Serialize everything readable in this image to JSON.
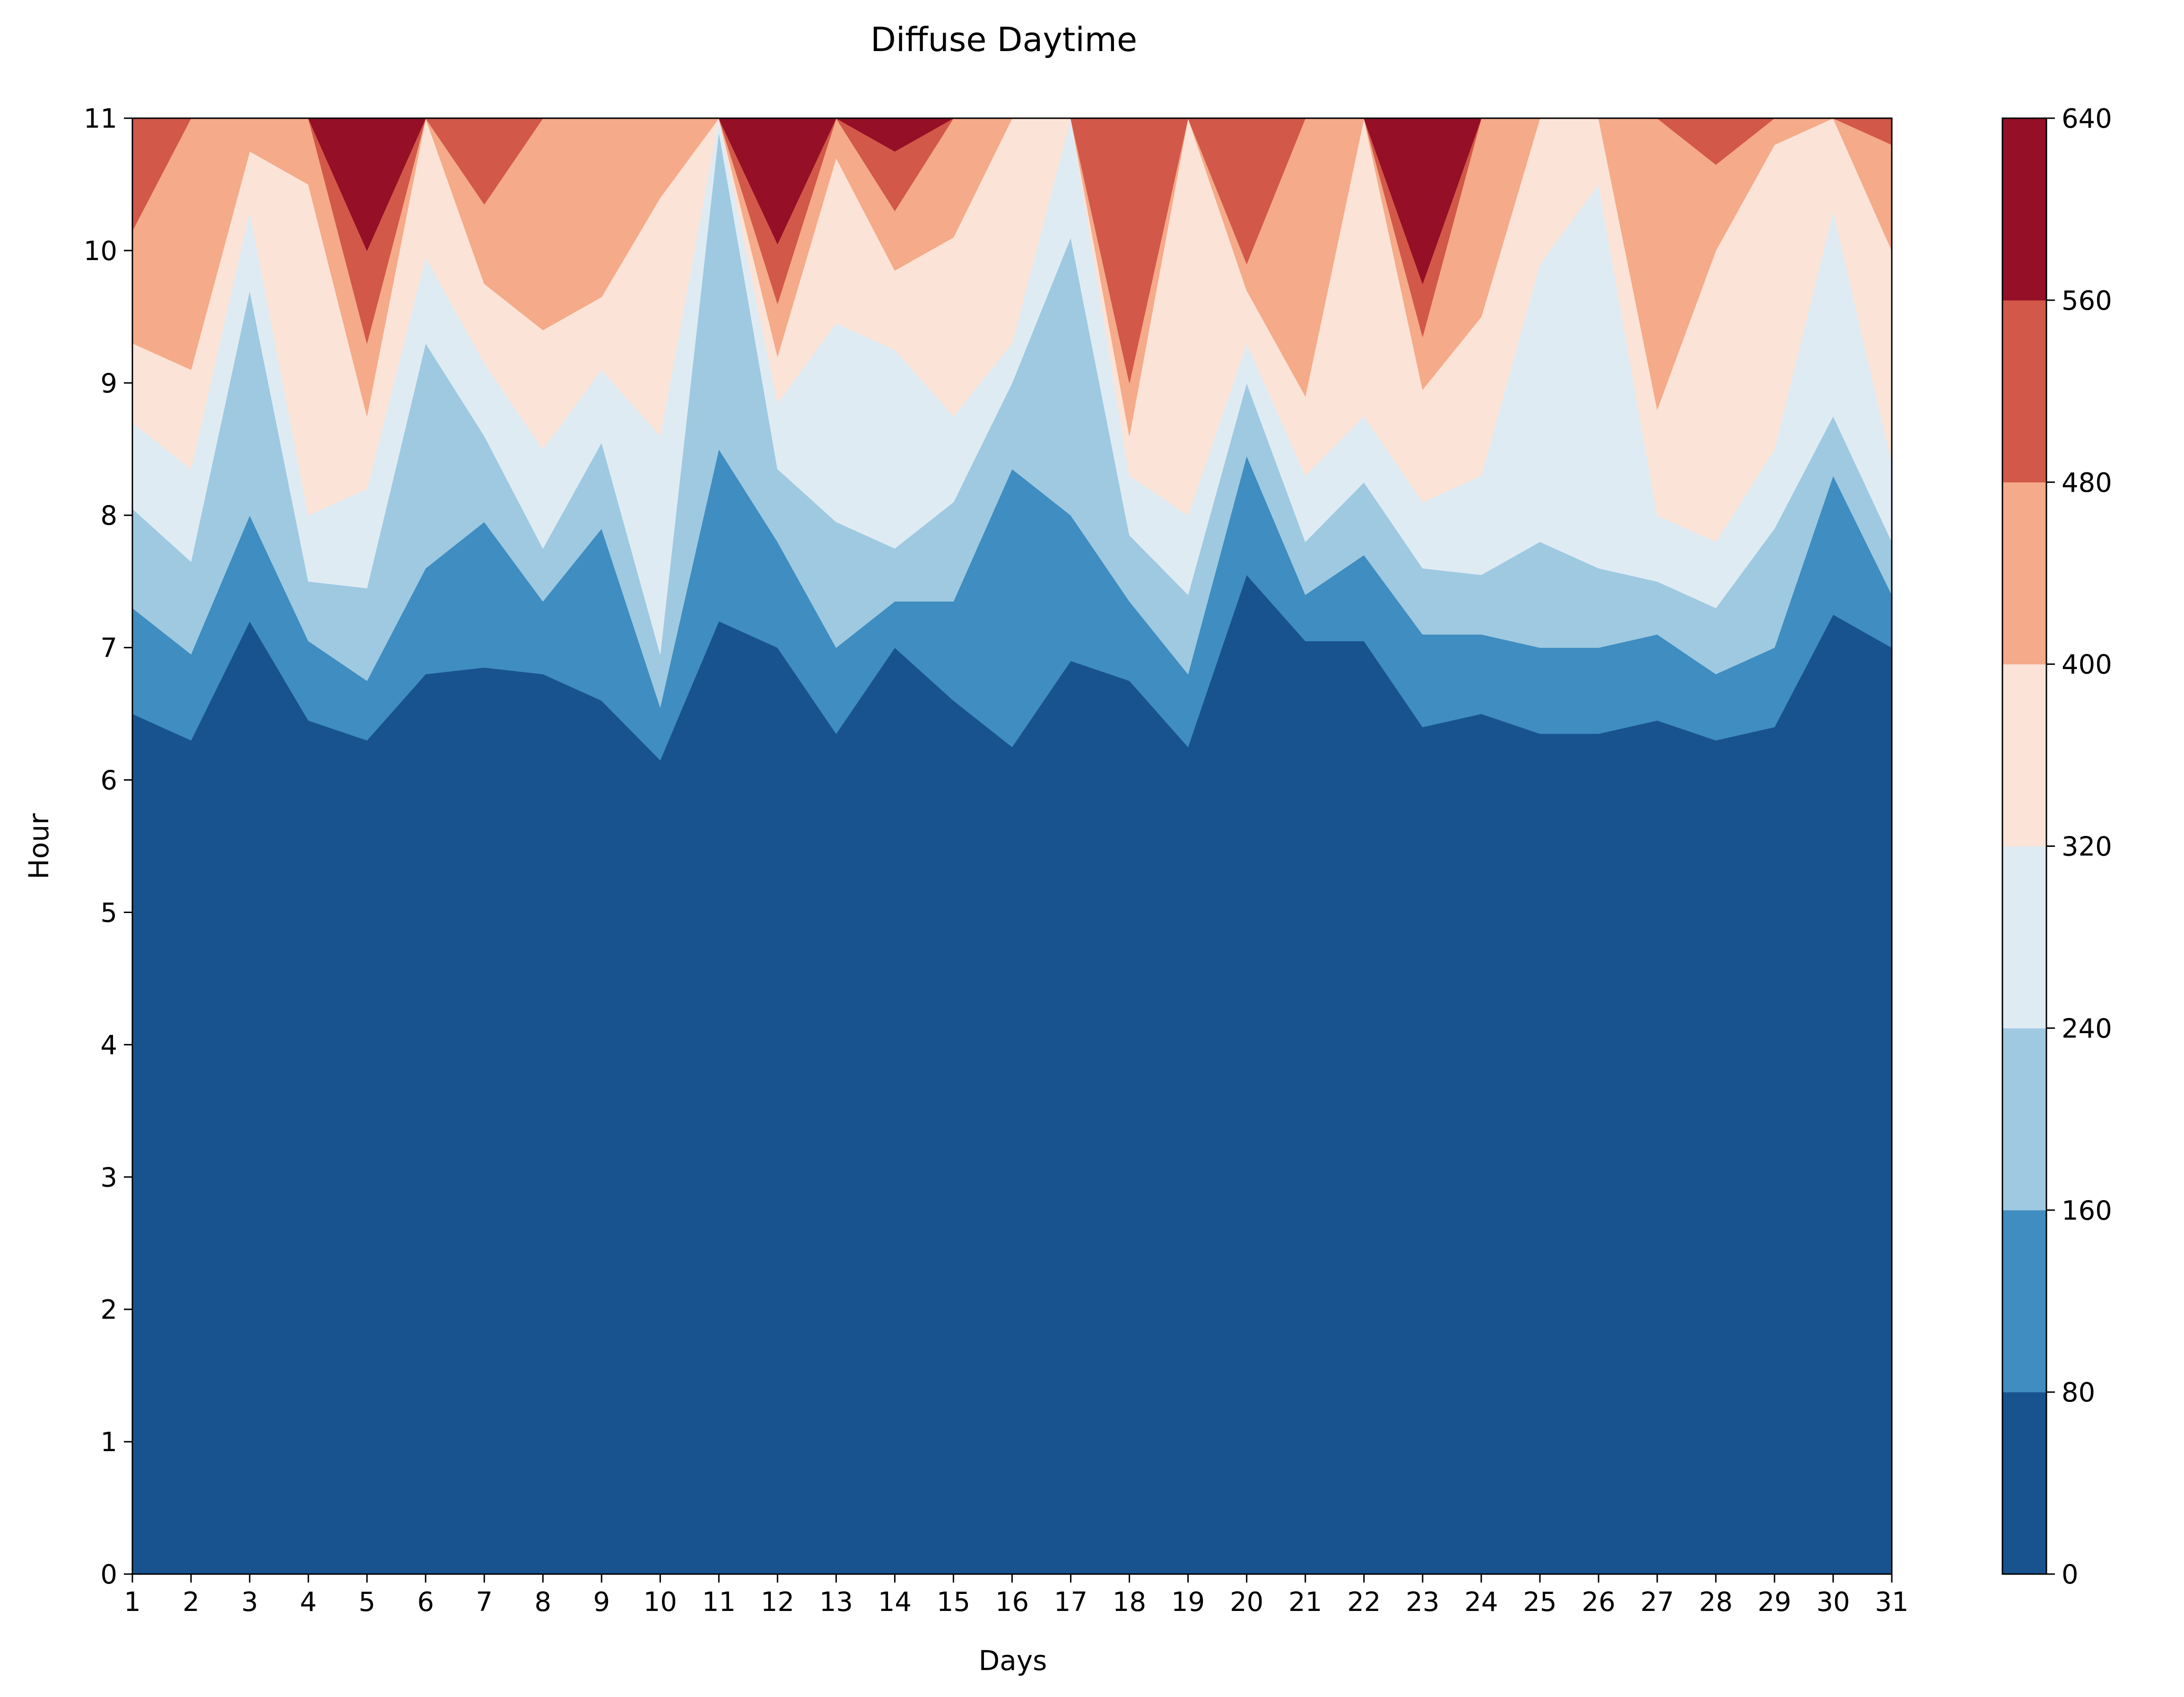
{
  "chart_data": {
    "type": "contourf",
    "title": "Diffuse Daytime",
    "xlabel": "Days",
    "ylabel": "Hour",
    "xlim": [
      1,
      31
    ],
    "ylim": [
      0,
      11
    ],
    "x_ticks": [
      "1",
      "2",
      "3",
      "4",
      "5",
      "6",
      "7",
      "8",
      "9",
      "10",
      "11",
      "12",
      "13",
      "14",
      "15",
      "16",
      "17",
      "18",
      "19",
      "20",
      "21",
      "22",
      "23",
      "24",
      "25",
      "26",
      "27",
      "28",
      "29",
      "30",
      "31"
    ],
    "y_ticks": [
      "0",
      "1",
      "2",
      "3",
      "4",
      "5",
      "6",
      "7",
      "8",
      "9",
      "10",
      "11"
    ],
    "colorbar": {
      "levels": [
        0,
        80,
        160,
        240,
        320,
        400,
        480,
        560,
        640
      ],
      "tick_labels": [
        "0",
        "80",
        "160",
        "240",
        "320",
        "400",
        "480",
        "560",
        "640"
      ],
      "colors": [
        "#185390",
        "#3f8dc1",
        "#9ec9e1",
        "#dfebf3",
        "#fbe3d7",
        "#f5aa89",
        "#d25849",
        "#950f26"
      ]
    },
    "days": [
      1,
      2,
      3,
      4,
      5,
      6,
      7,
      8,
      9,
      10,
      11,
      12,
      13,
      14,
      15,
      16,
      17,
      18,
      19,
      20,
      21,
      22,
      23,
      24,
      25,
      26,
      27,
      28,
      29,
      30,
      31
    ],
    "hours": [
      0,
      1,
      2,
      3,
      4,
      5,
      6,
      7,
      8,
      9,
      10,
      11
    ],
    "band_boundaries_hours": {
      "80": [
        6.5,
        6.3,
        7.2,
        6.45,
        6.3,
        6.8,
        6.85,
        6.8,
        6.6,
        6.15,
        7.2,
        7.0,
        6.35,
        7.0,
        6.6,
        6.25,
        6.9,
        6.75,
        6.25,
        7.55,
        7.05,
        7.05,
        6.4,
        6.5,
        6.35,
        6.35,
        6.45,
        6.3,
        6.4,
        7.25,
        7.0
      ],
      "160": [
        7.3,
        6.95,
        8.0,
        7.05,
        6.75,
        7.6,
        7.95,
        7.35,
        7.9,
        6.55,
        8.5,
        7.8,
        7.0,
        7.35,
        7.35,
        8.35,
        8.0,
        7.35,
        6.8,
        8.45,
        7.4,
        7.7,
        7.1,
        7.1,
        7.0,
        7.0,
        7.1,
        6.8,
        7.0,
        8.3,
        7.4
      ],
      "240": [
        8.05,
        7.65,
        9.7,
        7.5,
        7.45,
        9.3,
        8.6,
        7.75,
        8.55,
        6.95,
        10.9,
        8.35,
        7.95,
        7.75,
        8.1,
        9.0,
        10.1,
        7.85,
        7.4,
        9.0,
        7.8,
        8.25,
        7.6,
        7.55,
        7.8,
        7.6,
        7.5,
        7.3,
        7.9,
        8.75,
        7.8
      ],
      "320": [
        8.7,
        8.35,
        10.3,
        8.0,
        8.2,
        9.95,
        9.15,
        8.5,
        9.1,
        8.6,
        11.0,
        8.85,
        9.45,
        9.25,
        8.75,
        9.3,
        11.0,
        8.3,
        8.0,
        9.3,
        8.3,
        8.75,
        8.1,
        8.3,
        9.9,
        10.5,
        8.0,
        7.8,
        8.5,
        10.3,
        8.4
      ],
      "400": [
        9.3,
        9.1,
        10.75,
        10.5,
        8.75,
        11.0,
        9.75,
        9.4,
        9.65,
        10.4,
        11.0,
        9.2,
        10.7,
        9.85,
        10.1,
        11.0,
        11.0,
        8.6,
        11.0,
        9.7,
        8.9,
        11.0,
        8.95,
        9.5,
        11.0,
        11.0,
        8.8,
        10.0,
        10.8,
        11.0,
        10.0
      ],
      "480": [
        10.15,
        11.0,
        11.0,
        11.0,
        9.3,
        11.0,
        10.35,
        11.0,
        11.0,
        11.0,
        11.0,
        9.6,
        11.0,
        10.3,
        11.0,
        11.0,
        11.0,
        9.0,
        11.0,
        9.9,
        11.0,
        11.0,
        9.35,
        11.0,
        11.0,
        11.0,
        11.0,
        10.65,
        11.0,
        11.0,
        10.8
      ],
      "560": [
        11.0,
        11.0,
        11.0,
        11.0,
        10.0,
        11.0,
        11.0,
        11.0,
        11.0,
        11.0,
        11.0,
        10.05,
        11.0,
        10.75,
        11.0,
        11.0,
        11.0,
        11.0,
        11.0,
        11.0,
        11.0,
        11.0,
        9.75,
        11.0,
        11.0,
        11.0,
        11.0,
        11.0,
        11.0,
        11.0,
        11.0
      ]
    }
  }
}
